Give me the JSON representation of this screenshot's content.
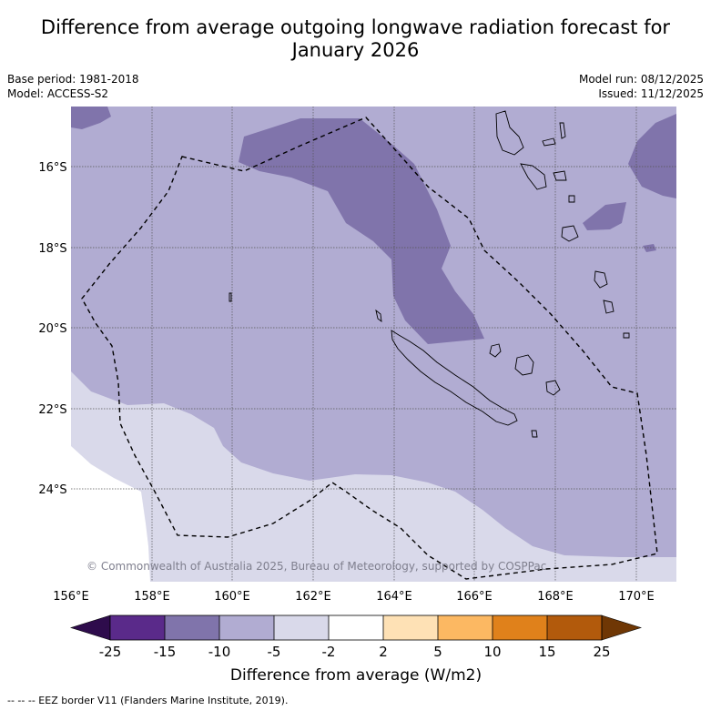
{
  "title": {
    "line1": "Difference from average outgoing longwave radiation forecast for",
    "line2": "January 2026"
  },
  "meta_left": {
    "base_period": "Base period: 1981-2018",
    "model": "Model: ACCESS-S2"
  },
  "meta_right": {
    "model_run": "Model run: 08/12/2025",
    "issued": "Issued: 11/12/2025"
  },
  "map": {
    "lon_ticks": [
      "156°E",
      "158°E",
      "160°E",
      "162°E",
      "164°E",
      "166°E",
      "168°E",
      "170°E"
    ],
    "lat_ticks": [
      "16°S",
      "18°S",
      "20°S",
      "22°S",
      "24°S"
    ],
    "lon_tick_values": [
      156,
      158,
      160,
      162,
      164,
      166,
      168,
      170
    ],
    "lat_tick_values": [
      -16,
      -18,
      -20,
      -22,
      -24
    ],
    "copyright": "© Commonwealth of Australia 2025, Bureau of Meteorology, supported by COSPPac",
    "colors": {
      "band_minus15_minus10": "#8074ab",
      "band_minus10_minus5": "#b1acd2",
      "band_minus5_minus2": "#d9d9ea",
      "band_minus2_2": "#ffffff"
    }
  },
  "colorbar": {
    "label": "Difference from average (W/m2)",
    "ticks": [
      "-25",
      "-15",
      "-10",
      "-5",
      "-2",
      "2",
      "5",
      "10",
      "15",
      "25"
    ],
    "colors": [
      "#2e0c4c",
      "#5a2a8a",
      "#8074ab",
      "#b1acd2",
      "#d9d9ea",
      "#ffffff",
      "#fee1b5",
      "#fcb862",
      "#e0811b",
      "#b25a0c",
      "#6f3705"
    ]
  },
  "footer": {
    "legend_text": "--  --  -- EEZ border V11 (Flanders Marine Institute, 2019)."
  }
}
